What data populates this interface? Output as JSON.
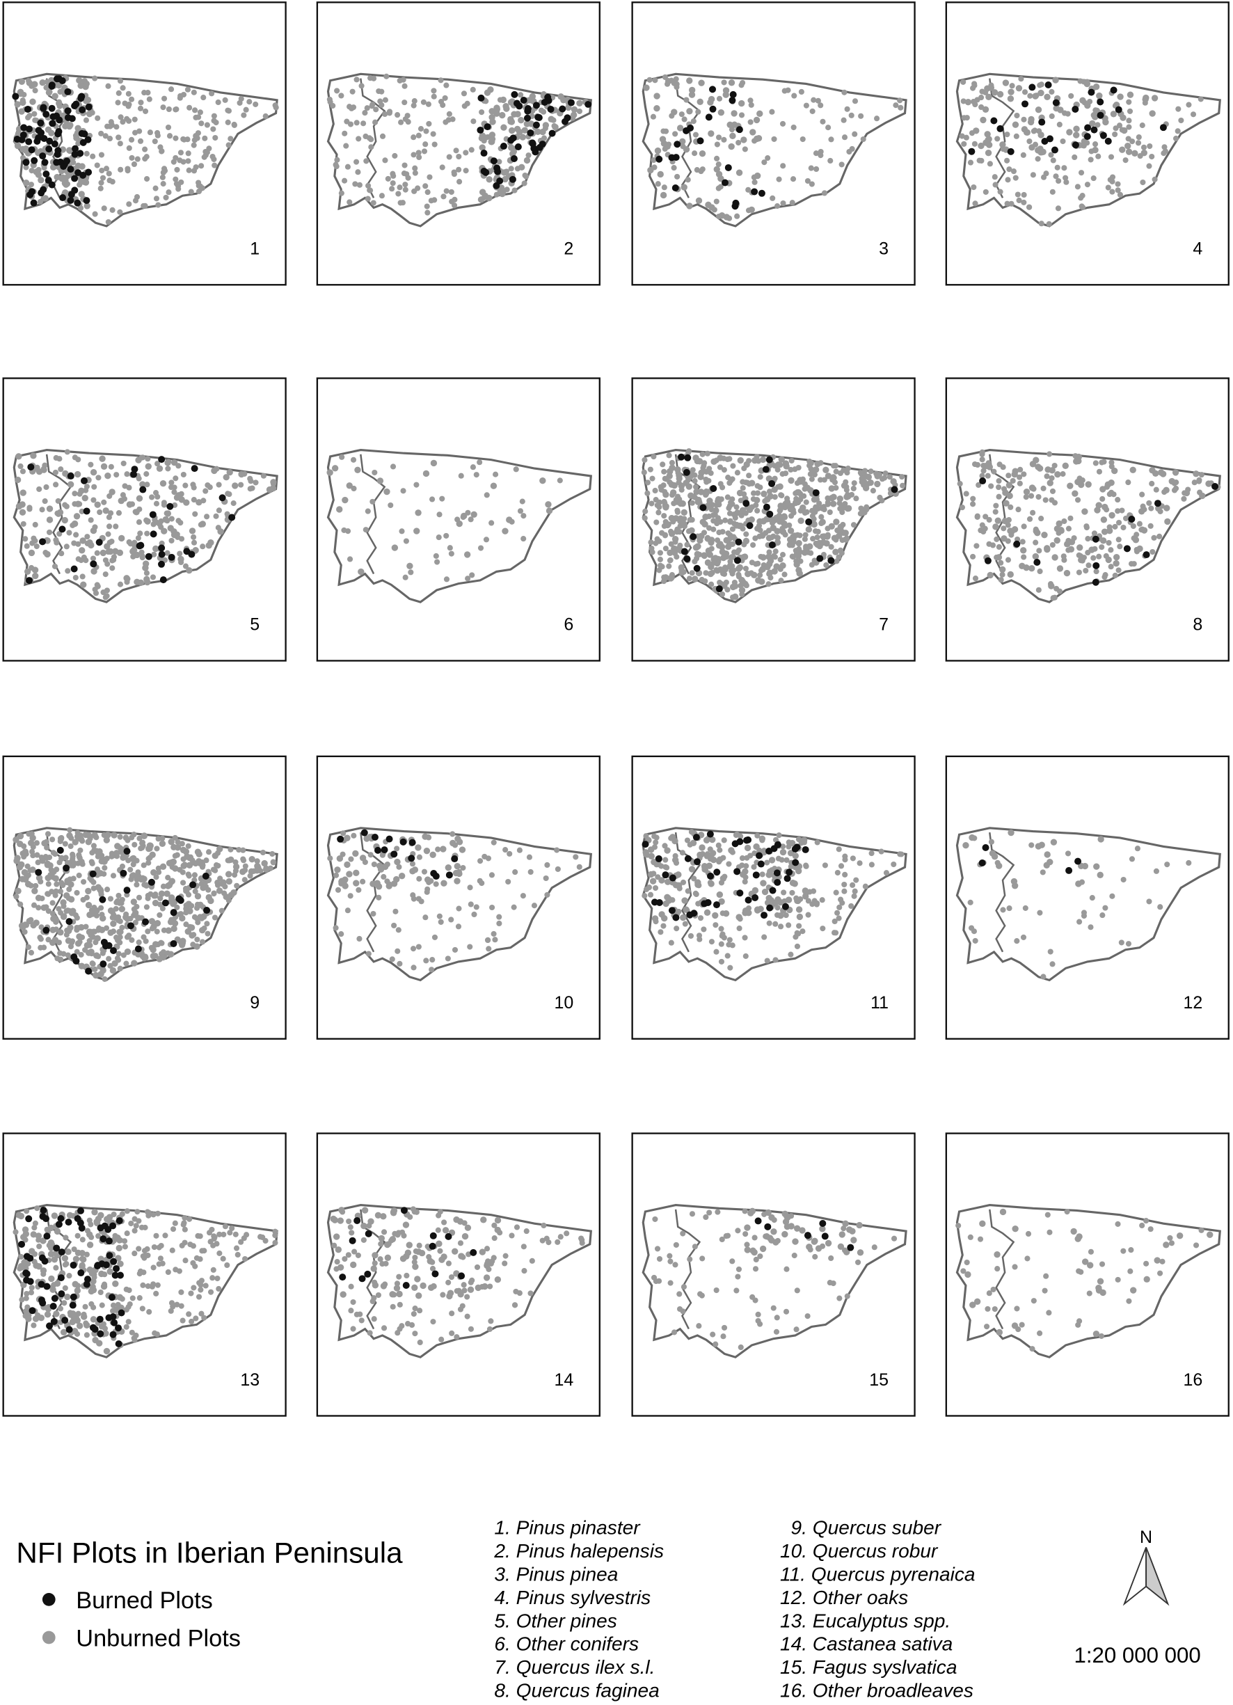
{
  "panels": [
    "1",
    "2",
    "3",
    "4",
    "5",
    "6",
    "7",
    "8",
    "9",
    "10",
    "11",
    "12",
    "13",
    "14",
    "15",
    "16"
  ],
  "legend": {
    "title": "NFI Plots in Iberian Peninsula",
    "items": [
      "Burned Plots",
      "Unburned Plots"
    ]
  },
  "species": [
    "1. Pinus pinaster",
    "2. Pinus halepensis",
    "3. Pinus pinea",
    "4. Pinus sylvestris",
    "5. Other pines",
    "6. Other conifers",
    "7. Quercus ilex s.l.",
    "8. Quercus faginea",
    "9. Quercus suber",
    "10. Quercus robur",
    "11. Quercus pyrenaica",
    "12. Other oaks",
    "13. Eucalyptus spp.",
    "14. Castanea sativa",
    "15. Fagus syslvatica",
    "16. Other broadleaves"
  ],
  "north": "N",
  "scale": "1:20 000 000"
}
